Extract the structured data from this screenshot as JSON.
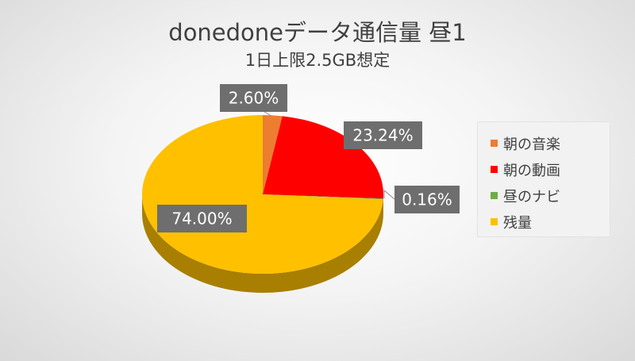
{
  "chart_data": {
    "type": "pie",
    "title": "donedoneデータ通信量 昼1",
    "subtitle": "1日上限2.5GB想定",
    "slices": [
      {
        "name": "朝の音楽",
        "value": 2.6,
        "label": "2.60%",
        "color": "#ED7D31",
        "side": "#B5571C"
      },
      {
        "name": "朝の動画",
        "value": 23.24,
        "label": "23.24%",
        "color": "#FF0000",
        "side": "#B30000"
      },
      {
        "name": "昼のナビ",
        "value": 0.16,
        "label": "0.16%",
        "color": "#70AD47",
        "side": "#4E7A31"
      },
      {
        "name": "残量",
        "value": 74.0,
        "label": "74.00%",
        "color": "#FFC000",
        "side": "#A87F00"
      }
    ],
    "legend_position": "right",
    "data_label_background": "#6E6E6E",
    "data_label_color": "#FFFFFF"
  }
}
